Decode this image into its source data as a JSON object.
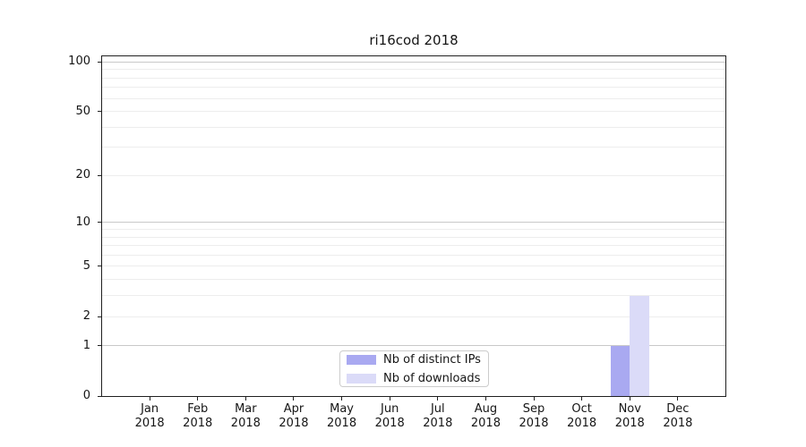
{
  "title": "ri16cod 2018",
  "chart_data": {
    "type": "bar",
    "title": "ri16cod 2018",
    "categories": [
      "Jan 2018",
      "Feb 2018",
      "Mar 2018",
      "Apr 2018",
      "May 2018",
      "Jun 2018",
      "Jul 2018",
      "Aug 2018",
      "Sep 2018",
      "Oct 2018",
      "Nov 2018",
      "Dec 2018"
    ],
    "series": [
      {
        "name": "Nb of distinct IPs",
        "color": "#a9a9f1",
        "values": [
          0,
          0,
          0,
          0,
          0,
          0,
          0,
          0,
          0,
          0,
          1,
          0
        ]
      },
      {
        "name": "Nb of downloads",
        "color": "#dbdbf8",
        "values": [
          0,
          0,
          0,
          0,
          0,
          0,
          0,
          0,
          0,
          0,
          3,
          0
        ]
      }
    ],
    "xlabel": "",
    "ylabel": "",
    "yscale": "log1p",
    "ylim": [
      0,
      108
    ],
    "yticks": [
      0,
      1,
      2,
      5,
      10,
      20,
      50,
      100
    ],
    "major_gridlines": [
      1,
      10,
      100
    ],
    "minor_gridlines": [
      2,
      3,
      4,
      5,
      6,
      7,
      8,
      9,
      20,
      30,
      40,
      50,
      60,
      70,
      80,
      90
    ],
    "grid": "horizontal",
    "legend_position": "lower center",
    "colors": {
      "distinct_ips_bar": "#a9a9f1",
      "downloads_bar": "#dbdbf8",
      "major_grid": "#c9c9c9",
      "minor_grid": "#ededed",
      "axis": "#202020"
    }
  }
}
